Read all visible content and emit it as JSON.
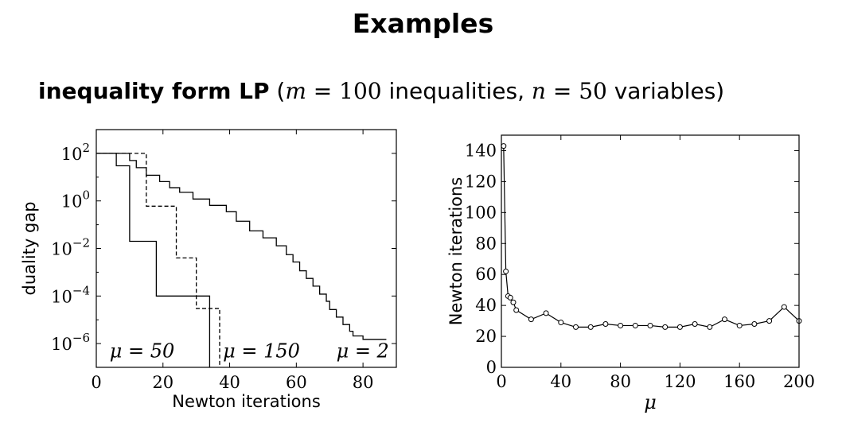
{
  "slide": {
    "title": "Examples",
    "subtitle": {
      "bold": "inequality form LP",
      "open": "(",
      "m_sym": "m",
      "m_eq": " = 100 ",
      "m_label": "inequalities, ",
      "n_sym": "n",
      "n_eq": " = 50 ",
      "n_label": "variables)"
    }
  },
  "chart_data": [
    {
      "type": "line",
      "step": true,
      "xlabel": "Newton iterations",
      "ylabel": "duality gap",
      "xlim": [
        0,
        90
      ],
      "ylim_log10": [
        -7,
        3
      ],
      "yscale": "log",
      "x_ticks": [
        "0",
        "20",
        "40",
        "60",
        "80"
      ],
      "y_ticks": [
        {
          "base": "10",
          "exp": "2",
          "log": 2
        },
        {
          "base": "10",
          "exp": "0",
          "log": 0
        },
        {
          "base": "10",
          "exp": "−2",
          "log": -2
        },
        {
          "base": "10",
          "exp": "−4",
          "log": -4
        },
        {
          "base": "10",
          "exp": "−6",
          "log": -6
        }
      ],
      "series": [
        {
          "name": "μ = 50",
          "line_style": "solid",
          "steps": [
            [
              0,
              100
            ],
            [
              6,
              30
            ],
            [
              10,
              0.02
            ],
            [
              18,
              0.0001
            ],
            [
              30,
              0.0001
            ],
            [
              34,
              1e-07
            ]
          ],
          "label_x": 4,
          "label_y": 4.5e-07
        },
        {
          "name": "μ = 150",
          "line_style": "dashed",
          "steps": [
            [
              0,
              100
            ],
            [
              15,
              0.6
            ],
            [
              24,
              0.004
            ],
            [
              30,
              3e-05
            ],
            [
              37,
              1e-07
            ]
          ],
          "label_x": 38,
          "label_y": 4.5e-07
        },
        {
          "name": "μ = 2",
          "line_style": "solid",
          "steps": [
            [
              0,
              100
            ],
            [
              10,
              50
            ],
            [
              12,
              25
            ],
            [
              15,
              12
            ],
            [
              19,
              6.5
            ],
            [
              22,
              3.6
            ],
            [
              25,
              2.3
            ],
            [
              29,
              1.2
            ],
            [
              34,
              0.65
            ],
            [
              39,
              0.35
            ],
            [
              42,
              0.14
            ],
            [
              46,
              0.055
            ],
            [
              50,
              0.028
            ],
            [
              54,
              0.013
            ],
            [
              57,
              0.0055
            ],
            [
              59,
              0.0027
            ],
            [
              61,
              0.00115
            ],
            [
              63,
              0.00055
            ],
            [
              65,
              0.00026
            ],
            [
              67,
              0.00012
            ],
            [
              69,
              6e-05
            ],
            [
              70,
              2.7e-05
            ],
            [
              72,
              1.3e-05
            ],
            [
              74,
              6.3e-06
            ],
            [
              76,
              3.3e-06
            ],
            [
              77,
              2.1e-06
            ],
            [
              80,
              1.5e-06
            ],
            [
              87,
              1.5e-06
            ]
          ],
          "label_x": 72,
          "label_y": 4.5e-07
        }
      ]
    },
    {
      "type": "line",
      "markers": "circle",
      "xlabel": "μ",
      "ylabel": "Newton iterations",
      "xlim": [
        0,
        200
      ],
      "ylim": [
        0,
        150
      ],
      "x_ticks": [
        "0",
        "40",
        "80",
        "120",
        "160",
        "200"
      ],
      "y_ticks": [
        "0",
        "20",
        "40",
        "60",
        "80",
        "100",
        "120",
        "140"
      ],
      "x": [
        1.5,
        3,
        4.5,
        6,
        8,
        10,
        20,
        30,
        40,
        50,
        60,
        70,
        80,
        90,
        100,
        110,
        120,
        130,
        140,
        150,
        160,
        170,
        180,
        190,
        200
      ],
      "y": [
        143,
        62,
        46,
        45,
        42,
        37,
        31,
        35,
        29,
        26,
        26,
        28,
        27,
        27,
        27,
        26,
        26,
        28,
        26,
        31,
        27,
        28,
        30,
        39,
        30
      ]
    }
  ]
}
